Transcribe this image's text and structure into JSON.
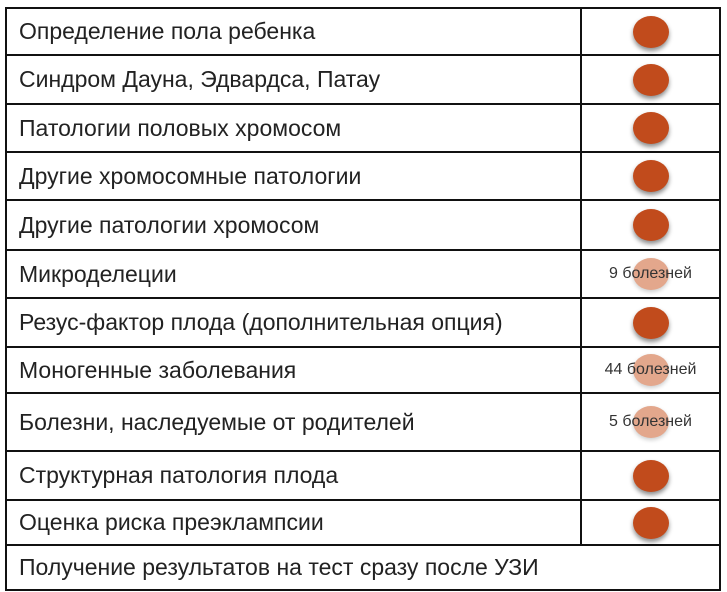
{
  "colors": {
    "dot": "#c14b1c",
    "dot_light": "#e3a78c",
    "border": "#111111",
    "text": "#222222"
  },
  "rows": [
    {
      "label": "Определение пола ребенка",
      "indicator": "check"
    },
    {
      "label": "Синдром Дауна, Эдвардса, Патау",
      "indicator": "check"
    },
    {
      "label": "Патологии половых хромосом",
      "indicator": "check"
    },
    {
      "label": "Другие хромосомные патологии",
      "indicator": "check"
    },
    {
      "label": "Другие патологии хромосом",
      "indicator": "check"
    },
    {
      "label": "Микроделеции",
      "indicator": "note",
      "note": "9 болезней"
    },
    {
      "label": "Резус-фактор плода (дополнительная опция)",
      "indicator": "check"
    },
    {
      "label": "Моногенные заболевания",
      "indicator": "note",
      "note": "44 болезней"
    },
    {
      "label": "Болезни, наследуемые от родителей",
      "indicator": "note",
      "note": "5 болезней"
    },
    {
      "label": "Структурная патология плода",
      "indicator": "check"
    },
    {
      "label": "Оценка риска преэклампсии",
      "indicator": "check"
    }
  ],
  "footer": {
    "label": "Получение результатов на тест сразу после УЗИ"
  }
}
